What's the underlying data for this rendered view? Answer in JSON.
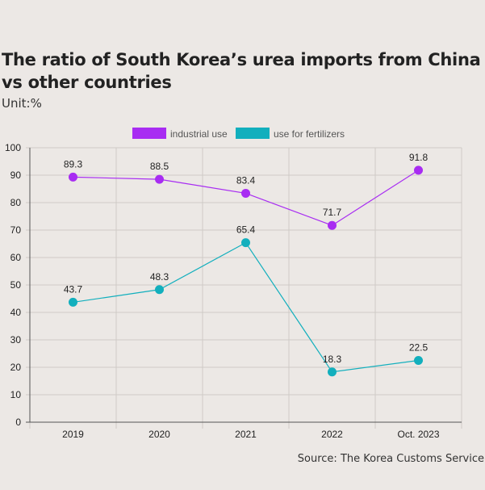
{
  "title": "The ratio of South Korea’s urea imports from China vs other countries",
  "unit": "Unit:%",
  "source": "Source: The Korea Customs Service",
  "colors": {
    "industrial": "#a82cf2",
    "fertilizer": "#12afbd",
    "grid": "#cfcac6",
    "axis": "#555555"
  },
  "chart_data": {
    "type": "line",
    "title": "The ratio of South Korea’s urea imports from China vs other countries",
    "xlabel": "",
    "ylabel": "Unit:%",
    "categories": [
      "2019",
      "2020",
      "2021",
      "2022",
      "Oct. 2023"
    ],
    "ylim": [
      0,
      100
    ],
    "yticks": [
      0,
      10,
      20,
      30,
      40,
      50,
      60,
      70,
      80,
      90,
      100
    ],
    "legend_position": "top-center",
    "series": [
      {
        "name": "industrial use",
        "values": [
          89.3,
          88.5,
          83.4,
          71.7,
          91.8
        ],
        "labels": [
          "89.3",
          "88.5",
          "83.4",
          "71.7",
          "91.8"
        ]
      },
      {
        "name": "use for fertilizers",
        "values": [
          43.7,
          48.3,
          65.4,
          18.3,
          22.5
        ],
        "labels": [
          "43.7",
          "48.3",
          "65.4",
          "18.3",
          "22.5"
        ]
      }
    ]
  }
}
